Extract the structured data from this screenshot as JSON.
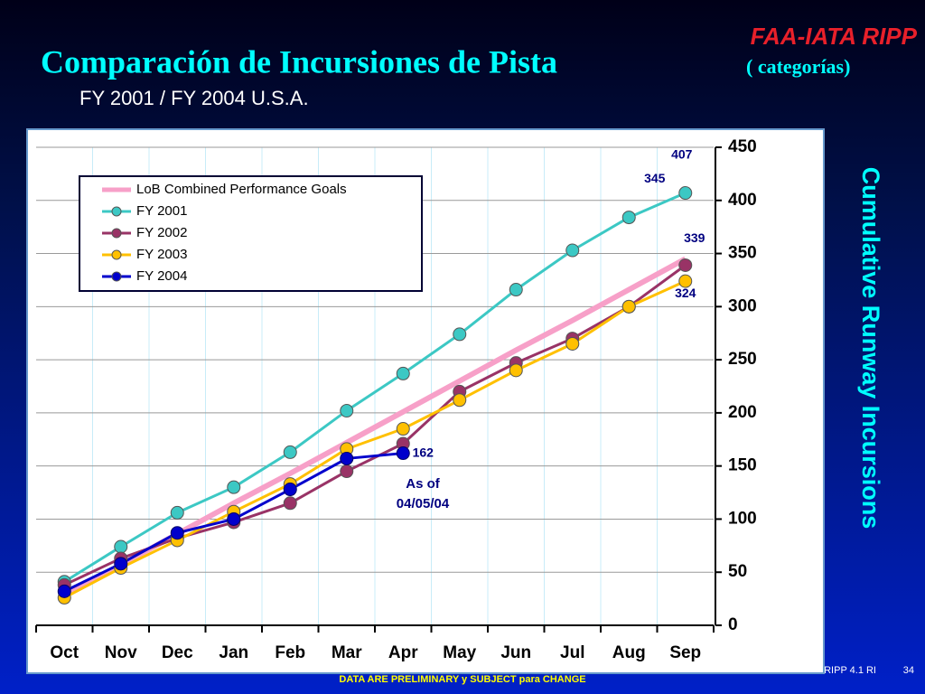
{
  "header": {
    "brand": "FAA-IATA RIPP",
    "footer_note": "DATA ARE PRELIMINARY y SUBJECT para CHANGE",
    "footer_ref": "RIPP 4.1 RI",
    "page_number": "34"
  },
  "chart_data": {
    "type": "line",
    "title": "Comparación de Incursiones de Pista",
    "title_suffix": "( categorías)",
    "subtitle": "FY 2001 / FY 2004 U.S.A.",
    "y_label": "Cumulative Runway Incursions",
    "annotation_lines": [
      "As of",
      "04/05/04"
    ],
    "categories": [
      "Oct",
      "Nov",
      "Dec",
      "Jan",
      "Feb",
      "Mar",
      "Apr",
      "May",
      "Jun",
      "Jul",
      "Aug",
      "Sep"
    ],
    "series": [
      {
        "name": "LoB Combined Performance Goals",
        "color": "#f7a0c8",
        "values": [
          28,
          57,
          86,
          115,
          143,
          172,
          201,
          230,
          259,
          287,
          316,
          345
        ]
      },
      {
        "name": "FY 2001",
        "color": "#3cc8c4",
        "values": [
          41,
          74,
          106,
          130,
          163,
          202,
          237,
          274,
          316,
          353,
          384,
          407
        ]
      },
      {
        "name": "FY 2002",
        "color": "#993366",
        "values": [
          38,
          63,
          82,
          97,
          115,
          145,
          171,
          220,
          247,
          270,
          300,
          339
        ]
      },
      {
        "name": "FY 2003",
        "color": "#ffc000",
        "values": [
          26,
          54,
          80,
          107,
          133,
          166,
          185,
          212,
          240,
          265,
          300,
          324
        ]
      },
      {
        "name": "FY 2004",
        "color": "#0000cc",
        "values": [
          32,
          58,
          87,
          100,
          128,
          157,
          162,
          null,
          null,
          null,
          null,
          null
        ]
      }
    ],
    "ylim": [
      0,
      450
    ],
    "yticks": [
      0,
      50,
      100,
      150,
      200,
      250,
      300,
      350,
      400,
      450
    ],
    "grid": true,
    "legend": "upper left"
  }
}
